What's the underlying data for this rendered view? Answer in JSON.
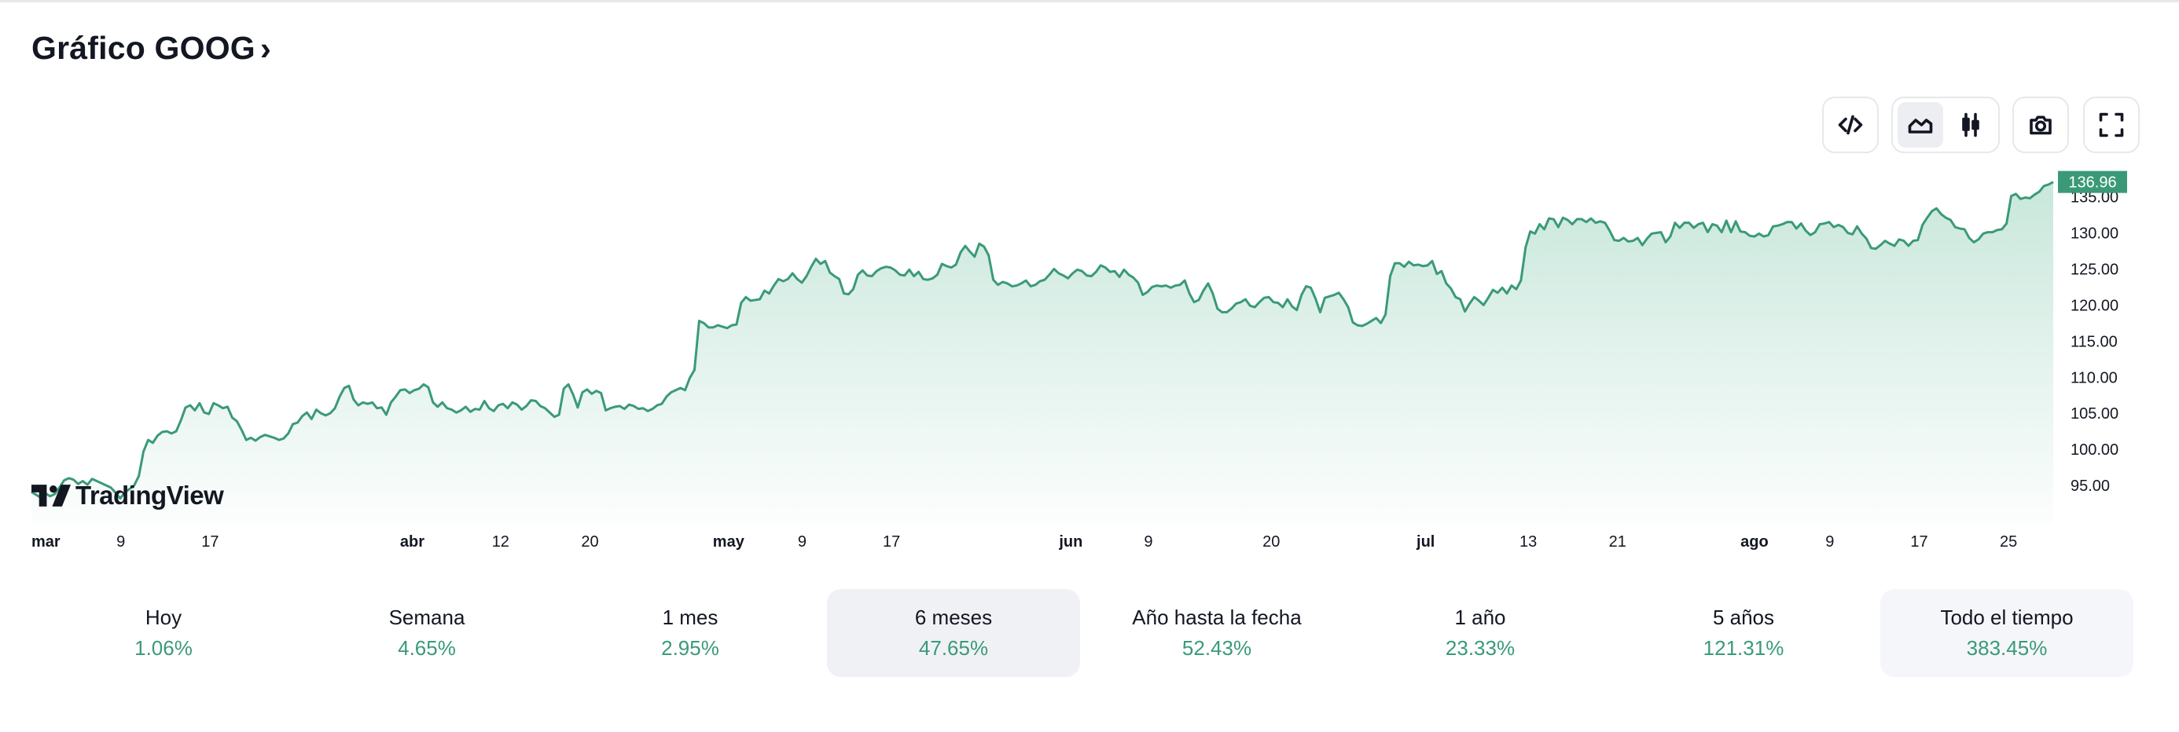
{
  "header": {
    "title": "Gráfico GOOG",
    "chevron": "›"
  },
  "toolbar": {
    "embed_icon": "code-icon",
    "area_icon": "area-chart-icon",
    "candle_icon": "candlestick-icon",
    "camera_icon": "camera-icon",
    "fullscreen_icon": "fullscreen-icon"
  },
  "watermark": {
    "text": "TradingView",
    "icon": "tradingview-logo"
  },
  "colors": {
    "line": "#3a9a78",
    "fill_top": "#bfe3d5",
    "price_tag": "#3a9a78",
    "positive": "#3a9a78"
  },
  "chart_data": {
    "type": "area",
    "series": [
      {
        "values": [
          94.0,
          93.6,
          93.2,
          93.8,
          93.4,
          93.7,
          94.6,
          95.6,
          95.9,
          95.7,
          95.1,
          95.5,
          95.0,
          95.8,
          95.5,
          95.2,
          94.9,
          94.6,
          93.9,
          93.1,
          93.9,
          94.4,
          94.9,
          96.2,
          99.6,
          101.2,
          100.8,
          101.8,
          102.3,
          102.4,
          102.1,
          102.4,
          103.9,
          105.7,
          106.0,
          105.3,
          106.3,
          105.0,
          104.8,
          106.3,
          106.0,
          105.6,
          105.8,
          104.3,
          103.8,
          102.6,
          101.2,
          101.5,
          101.1,
          101.6,
          101.9,
          101.7,
          101.5,
          101.2,
          101.4,
          102.1,
          103.4,
          103.6,
          104.5,
          105.0,
          104.1,
          105.4,
          104.9,
          104.6,
          104.9,
          105.6,
          107.2,
          108.4,
          108.7,
          106.8,
          106.0,
          106.4,
          106.2,
          106.4,
          105.6,
          105.7,
          104.7,
          106.4,
          107.2,
          108.1,
          108.2,
          107.7,
          108.1,
          108.3,
          108.9,
          108.5,
          106.4,
          105.8,
          106.4,
          105.6,
          105.4,
          105.0,
          105.3,
          105.8,
          105.1,
          105.5,
          105.4,
          106.6,
          105.6,
          105.2,
          106.0,
          106.2,
          105.6,
          106.4,
          106.1,
          105.4,
          105.9,
          106.7,
          106.6,
          105.9,
          105.6,
          105.0,
          104.4,
          104.7,
          108.3,
          108.9,
          107.5,
          105.7,
          107.8,
          108.2,
          107.6,
          108.0,
          107.7,
          105.3,
          105.6,
          105.8,
          105.9,
          105.5,
          106.1,
          105.9,
          105.5,
          105.6,
          105.2,
          105.5,
          106.0,
          106.2,
          107.2,
          107.8,
          108.1,
          108.4,
          108.1,
          109.8,
          110.9,
          117.7,
          117.4,
          116.8,
          116.8,
          117.1,
          116.9,
          116.7,
          117.1,
          117.2,
          120.2,
          121.0,
          120.5,
          120.6,
          120.7,
          121.9,
          121.5,
          122.6,
          123.5,
          123.2,
          123.5,
          124.3,
          123.5,
          123.0,
          123.9,
          125.2,
          126.3,
          125.6,
          126.0,
          124.4,
          123.9,
          123.5,
          121.5,
          121.4,
          122.1,
          124.1,
          124.7,
          124.0,
          123.9,
          124.6,
          125.0,
          125.2,
          125.1,
          124.7,
          124.1,
          124.0,
          124.8,
          123.9,
          124.5,
          123.5,
          123.4,
          123.6,
          124.1,
          125.6,
          125.3,
          125.1,
          125.5,
          127.2,
          128.1,
          127.3,
          126.6,
          128.4,
          128.0,
          126.8,
          123.4,
          122.7,
          123.1,
          122.9,
          122.5,
          122.6,
          122.9,
          123.3,
          122.5,
          122.7,
          123.2,
          123.4,
          124.1,
          124.9,
          124.3,
          124.0,
          123.6,
          124.3,
          124.8,
          124.6,
          124.0,
          123.9,
          124.5,
          125.4,
          125.1,
          124.5,
          124.6,
          123.8,
          124.8,
          124.1,
          123.7,
          123.0,
          121.3,
          121.7,
          122.4,
          122.6,
          122.5,
          122.6,
          122.3,
          122.6,
          122.7,
          123.3,
          121.5,
          120.3,
          120.6,
          121.9,
          122.9,
          121.5,
          119.4,
          118.9,
          118.9,
          119.4,
          120.1,
          120.3,
          120.7,
          119.8,
          119.6,
          120.3,
          120.9,
          121.0,
          120.3,
          120.2,
          119.6,
          120.7,
          119.7,
          119.2,
          121.3,
          122.5,
          122.3,
          120.8,
          118.9,
          120.9,
          121.1,
          121.3,
          121.6,
          120.7,
          119.6,
          117.5,
          117.1,
          117.0,
          117.3,
          117.7,
          118.1,
          117.4,
          118.6,
          123.9,
          125.7,
          125.7,
          125.2,
          125.9,
          125.4,
          125.5,
          125.3,
          125.4,
          126.0,
          124.2,
          124.6,
          122.9,
          122.2,
          121.0,
          120.7,
          119.0,
          120.1,
          121.0,
          120.5,
          119.9,
          120.9,
          122.0,
          121.6,
          122.3,
          121.5,
          122.6,
          122.1,
          123.3,
          127.9,
          130.1,
          129.8,
          131.1,
          130.4,
          131.9,
          131.8,
          130.7,
          132.0,
          131.7,
          131.1,
          131.8,
          131.8,
          131.4,
          131.9,
          131.3,
          131.5,
          131.3,
          130.2,
          128.9,
          128.8,
          129.2,
          128.7,
          128.8,
          129.2,
          128.2,
          129.1,
          129.8,
          129.9,
          130.0,
          128.6,
          129.4,
          131.3,
          130.6,
          131.3,
          131.3,
          130.6,
          131.1,
          131.3,
          130.0,
          131.1,
          130.9,
          130.0,
          131.6,
          130.0,
          131.5,
          130.1,
          130.0,
          129.5,
          129.4,
          129.8,
          129.4,
          129.6,
          130.8,
          130.9,
          131.1,
          131.4,
          131.4,
          130.5,
          131.2,
          130.2,
          129.6,
          130.0,
          131.1,
          131.2,
          131.4,
          130.7,
          131.0,
          130.7,
          129.9,
          129.7,
          130.8,
          129.8,
          129.1,
          127.8,
          127.7,
          128.2,
          128.8,
          128.4,
          128.1,
          129.0,
          128.8,
          128.1,
          128.8,
          128.9,
          131.0,
          132.0,
          132.9,
          133.3,
          132.5,
          132.0,
          131.7,
          130.7,
          130.5,
          130.4,
          129.2,
          128.6,
          129.0,
          129.8,
          130.0,
          130.0,
          130.3,
          130.4,
          131.2,
          135.0,
          135.3,
          134.6,
          134.8,
          134.7,
          135.2,
          135.6,
          136.4,
          136.6,
          136.96
        ]
      }
    ],
    "x_start": "2023-03-01",
    "x_end": "2023-08-29",
    "xticks": [
      {
        "date": "2023-03-01",
        "label": "mar",
        "bold": true
      },
      {
        "date": "2023-03-09",
        "label": "9",
        "bold": false
      },
      {
        "date": "2023-03-17",
        "label": "17",
        "bold": false
      },
      {
        "date": "2023-04-03",
        "label": "abr",
        "bold": true
      },
      {
        "date": "2023-04-12",
        "label": "12",
        "bold": false
      },
      {
        "date": "2023-04-20",
        "label": "20",
        "bold": false
      },
      {
        "date": "2023-05-01",
        "label": "may",
        "bold": true
      },
      {
        "date": "2023-05-09",
        "label": "9",
        "bold": false
      },
      {
        "date": "2023-05-17",
        "label": "17",
        "bold": false
      },
      {
        "date": "2023-06-01",
        "label": "jun",
        "bold": true
      },
      {
        "date": "2023-06-09",
        "label": "9",
        "bold": false
      },
      {
        "date": "2023-06-20",
        "label": "20",
        "bold": false
      },
      {
        "date": "2023-07-03",
        "label": "jul",
        "bold": true
      },
      {
        "date": "2023-07-13",
        "label": "13",
        "bold": false
      },
      {
        "date": "2023-07-21",
        "label": "21",
        "bold": false
      },
      {
        "date": "2023-08-01",
        "label": "ago",
        "bold": true
      },
      {
        "date": "2023-08-09",
        "label": "9",
        "bold": false
      },
      {
        "date": "2023-08-17",
        "label": "17",
        "bold": false
      },
      {
        "date": "2023-08-25",
        "label": "25",
        "bold": false
      }
    ],
    "yticks": [
      {
        "value": 95,
        "label": "95.00"
      },
      {
        "value": 100,
        "label": "100.00"
      },
      {
        "value": 105,
        "label": "105.00"
      },
      {
        "value": 110,
        "label": "110.00"
      },
      {
        "value": 115,
        "label": "115.00"
      },
      {
        "value": 120,
        "label": "120.00"
      },
      {
        "value": 125,
        "label": "125.00"
      },
      {
        "value": 130,
        "label": "130.00"
      },
      {
        "value": 135,
        "label": "135.00"
      }
    ],
    "last_price": 136.96,
    "last_price_label": "136.96",
    "grid": false
  },
  "periods": [
    {
      "label": "Hoy",
      "value": "1.06%",
      "state": "normal"
    },
    {
      "label": "Semana",
      "value": "4.65%",
      "state": "normal"
    },
    {
      "label": "1 mes",
      "value": "2.95%",
      "state": "normal"
    },
    {
      "label": "6 meses",
      "value": "47.65%",
      "state": "selected"
    },
    {
      "label": "Año hasta la fecha",
      "value": "52.43%",
      "state": "normal"
    },
    {
      "label": "1 año",
      "value": "23.33%",
      "state": "normal"
    },
    {
      "label": "5 años",
      "value": "121.31%",
      "state": "normal"
    },
    {
      "label": "Todo el tiempo",
      "value": "383.45%",
      "state": "alt"
    }
  ]
}
